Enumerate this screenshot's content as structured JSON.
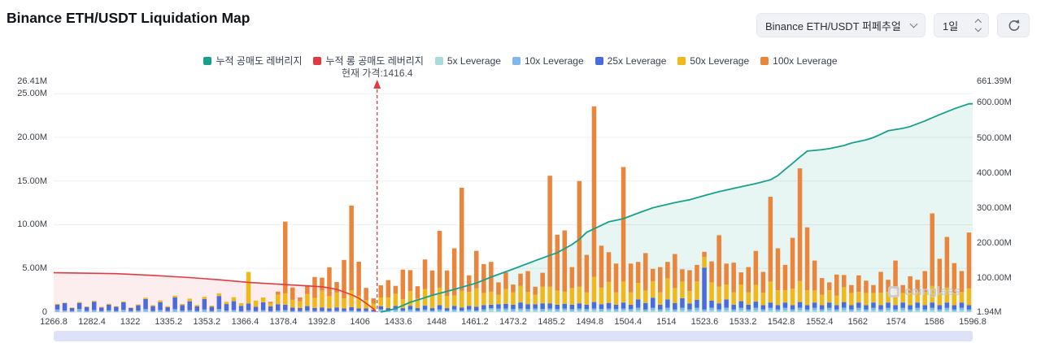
{
  "header": {
    "title": "Binance ETH/USDT Liquidation Map"
  },
  "controls": {
    "pair_select": {
      "value": "Binance ETH/USDT 퍼페추얼"
    },
    "interval_select": {
      "value": "1일"
    }
  },
  "legend": {
    "items": [
      {
        "label": "누적 공매도 레버리지",
        "color": "#17a08c"
      },
      {
        "label": "누적 롱 공매도 레버리지",
        "color": "#e23b3f"
      },
      {
        "label": "5x Leverage",
        "color": "#a7dcd8"
      },
      {
        "label": "10x Leverage",
        "color": "#7fb8ea"
      },
      {
        "label": "25x Leverage",
        "color": "#4a6bdc"
      },
      {
        "label": "50x Leverage",
        "color": "#f0b919"
      },
      {
        "label": "100x Leverage",
        "color": "#e9863c"
      }
    ]
  },
  "annotations": {
    "current_price_label": "현재 가격:1416.4",
    "current_price": 1416.4
  },
  "watermark": "coinglass",
  "chart_data": {
    "type": "bar",
    "subtype": "liquidation-map (stacked bars + cumulative lines)",
    "units": "M USD",
    "left_axis": {
      "max": 26.41,
      "ticks": [
        {
          "v": 26.41,
          "label": "26.41M",
          "grid": false
        },
        {
          "v": 25,
          "label": "25.00M",
          "grid": true
        },
        {
          "v": 20,
          "label": "20.00M",
          "grid": true
        },
        {
          "v": 15,
          "label": "15.00M",
          "grid": true
        },
        {
          "v": 10,
          "label": "10.00M",
          "grid": true
        },
        {
          "v": 5,
          "label": "5.00M",
          "grid": true
        },
        {
          "v": 0,
          "label": "0",
          "grid": false
        }
      ]
    },
    "right_axis": {
      "min": 1.94,
      "max": 661.39,
      "ticks": [
        {
          "v": 661.39,
          "label": "661.39M"
        },
        {
          "v": 600,
          "label": "600.00M"
        },
        {
          "v": 500,
          "label": "500.00M"
        },
        {
          "v": 400,
          "label": "400.00M"
        },
        {
          "v": 300,
          "label": "300.00M"
        },
        {
          "v": 200,
          "label": "200.00M"
        },
        {
          "v": 100,
          "label": "100.00M"
        },
        {
          "v": 1.94,
          "label": "1.94M"
        }
      ]
    },
    "x_tick_labels": [
      "1266.8",
      "1282.4",
      "1322",
      "1335.2",
      "1353.2",
      "1366.4",
      "1378.4",
      "1392.8",
      "1406",
      "1433.6",
      "1448",
      "1461.2",
      "1473.2",
      "1485.2",
      "1494.8",
      "1504.4",
      "1514",
      "1523.6",
      "1533.2",
      "1542.8",
      "1552.4",
      "1562",
      "1574",
      "1586",
      "1596.8"
    ],
    "current_price_index": 44,
    "bars": {
      "series_names": [
        "5x Leverage",
        "10x Leverage",
        "25x Leverage",
        "50x Leverage",
        "100x Leverage"
      ],
      "colors": [
        "#a7dcd8",
        "#7fb8ea",
        "#4a6bdc",
        "#f0b919",
        "#e9863c"
      ],
      "stacks": [
        [
          0.05,
          0.25,
          0.55,
          0.1,
          0
        ],
        [
          0.03,
          0.15,
          0.85,
          0.05,
          0
        ],
        [
          0.02,
          0.1,
          0.35,
          0.05,
          0
        ],
        [
          0.05,
          0.3,
          0.7,
          0.1,
          0
        ],
        [
          0.02,
          0.12,
          0.45,
          0.05,
          0
        ],
        [
          0.04,
          0.2,
          0.95,
          0.1,
          0
        ],
        [
          0.02,
          0.1,
          0.4,
          0.08,
          0
        ],
        [
          0.03,
          0.18,
          0.65,
          0.1,
          0
        ],
        [
          0.02,
          0.1,
          0.5,
          0.05,
          0
        ],
        [
          0.05,
          0.22,
          0.85,
          0.1,
          0
        ],
        [
          0.02,
          0.1,
          0.35,
          0.05,
          0
        ],
        [
          0.03,
          0.15,
          0.6,
          0.1,
          0
        ],
        [
          0.05,
          0.3,
          1.15,
          0.15,
          0
        ],
        [
          0.02,
          0.12,
          0.55,
          0.1,
          0
        ],
        [
          0.04,
          0.2,
          0.9,
          0.2,
          0
        ],
        [
          0.02,
          0.1,
          0.45,
          0.1,
          0
        ],
        [
          0.05,
          0.28,
          1.35,
          0.2,
          0
        ],
        [
          0.02,
          0.14,
          0.65,
          0.12,
          0
        ],
        [
          0.04,
          0.2,
          1.0,
          0.3,
          0
        ],
        [
          0.02,
          0.1,
          0.55,
          0.15,
          0
        ],
        [
          0.05,
          0.25,
          1.2,
          0.25,
          0
        ],
        [
          0.02,
          0.1,
          0.5,
          0.12,
          0
        ],
        [
          0.04,
          0.3,
          1.5,
          0.3,
          0
        ],
        [
          0.02,
          0.15,
          0.75,
          0.25,
          0
        ],
        [
          0.05,
          0.2,
          1.0,
          0.45,
          0
        ],
        [
          0.02,
          0.1,
          0.6,
          0.3,
          0
        ],
        [
          0.04,
          0.2,
          0.75,
          3.6,
          0
        ],
        [
          0.02,
          0.1,
          0.5,
          0.7,
          0
        ],
        [
          0.04,
          0.18,
          0.9,
          0.55,
          0
        ],
        [
          0.02,
          0.1,
          0.55,
          0.35,
          0.15
        ],
        [
          0.04,
          0.15,
          0.7,
          1.1,
          0.35
        ],
        [
          0.05,
          0.2,
          0.6,
          1.3,
          8.2
        ],
        [
          0.02,
          0.1,
          0.4,
          0.9,
          1.4
        ],
        [
          0.02,
          0.1,
          0.35,
          0.75,
          0.45
        ],
        [
          0.04,
          0.15,
          0.5,
          1.4,
          0.95
        ],
        [
          0.02,
          0.1,
          0.35,
          1.15,
          2.4
        ],
        [
          0.04,
          0.1,
          0.4,
          1.9,
          1.5
        ],
        [
          0.02,
          0.1,
          0.3,
          1.4,
          3.3
        ],
        [
          0.04,
          0.1,
          0.4,
          1.7,
          1.2
        ],
        [
          0.02,
          0.1,
          0.3,
          1.15,
          4.4
        ],
        [
          0.04,
          0.14,
          0.4,
          1.9,
          9.7
        ],
        [
          0.02,
          0.1,
          0.3,
          1.45,
          3.9
        ],
        [
          0.02,
          0.1,
          0.3,
          0.95,
          1.4
        ],
        [
          0.02,
          0.05,
          0.2,
          0.7,
          0.6
        ],
        [
          0.12,
          0.2,
          0.35,
          1.0,
          1.4
        ],
        [
          0.06,
          0.1,
          0.3,
          1.2,
          2.0
        ],
        [
          0.1,
          0.2,
          0.4,
          1.4,
          0.9
        ],
        [
          0.06,
          0.1,
          0.3,
          1.0,
          3.4
        ],
        [
          0.1,
          0.2,
          0.4,
          1.7,
          2.4
        ],
        [
          0.06,
          0.1,
          0.3,
          1.1,
          1.4
        ],
        [
          0.1,
          0.18,
          0.45,
          1.9,
          3.4
        ],
        [
          0.06,
          0.1,
          0.3,
          1.4,
          2.9
        ],
        [
          0.1,
          0.2,
          0.5,
          2.0,
          6.5
        ],
        [
          0.06,
          0.1,
          0.3,
          1.4,
          2.9
        ],
        [
          0.1,
          0.2,
          0.4,
          1.2,
          5.4
        ],
        [
          0.06,
          0.12,
          0.35,
          1.9,
          11.8
        ],
        [
          0.1,
          0.2,
          0.4,
          1.6,
          1.9
        ],
        [
          0.06,
          0.1,
          0.45,
          2.1,
          4.3
        ],
        [
          0.1,
          0.2,
          0.5,
          1.4,
          3.3
        ],
        [
          0.3,
          0.15,
          0.4,
          1.5,
          3.4
        ],
        [
          0.1,
          0.3,
          0.5,
          1.1,
          1.4
        ],
        [
          0.2,
          0.2,
          0.55,
          1.7,
          1.9
        ],
        [
          0.1,
          0.25,
          0.5,
          1.4,
          0.9
        ],
        [
          0.2,
          0.2,
          0.7,
          1.9,
          1.4
        ],
        [
          0.1,
          0.25,
          0.55,
          1.4,
          2.4
        ],
        [
          0.2,
          0.2,
          0.5,
          1.1,
          0.9
        ],
        [
          0.1,
          0.25,
          0.65,
          1.9,
          1.6
        ],
        [
          0.2,
          0.2,
          0.6,
          1.9,
          12.7
        ],
        [
          0.1,
          0.25,
          0.5,
          1.6,
          6.4
        ],
        [
          0.2,
          0.2,
          0.55,
          1.4,
          7.0
        ],
        [
          0.1,
          0.25,
          0.5,
          1.9,
          2.4
        ],
        [
          0.2,
          0.2,
          0.6,
          1.9,
          12.1
        ],
        [
          0.1,
          0.25,
          0.5,
          1.4,
          4.3
        ],
        [
          0.2,
          0.2,
          0.75,
          2.9,
          19.5
        ],
        [
          0.1,
          0.25,
          0.55,
          1.9,
          4.8
        ],
        [
          0.2,
          0.2,
          0.65,
          2.4,
          3.4
        ],
        [
          0.1,
          0.25,
          0.5,
          1.4,
          3.3
        ],
        [
          0.2,
          0.2,
          0.7,
          2.4,
          13.1
        ],
        [
          0.1,
          0.25,
          0.5,
          1.4,
          3.3
        ],
        [
          0.2,
          0.3,
          0.95,
          1.9,
          2.4
        ],
        [
          0.1,
          0.2,
          0.75,
          1.4,
          4.3
        ],
        [
          0.2,
          0.3,
          1.15,
          1.9,
          1.4
        ],
        [
          0.1,
          0.2,
          0.55,
          1.4,
          2.9
        ],
        [
          0.2,
          0.3,
          0.95,
          2.4,
          1.9
        ],
        [
          0.1,
          0.2,
          0.75,
          1.7,
          3.9
        ],
        [
          0.2,
          0.3,
          1.1,
          1.9,
          1.4
        ],
        [
          0.1,
          0.2,
          0.7,
          1.4,
          2.4
        ],
        [
          0.2,
          0.3,
          0.9,
          2.1,
          1.9
        ],
        [
          0.1,
          0.2,
          4.8,
          1.2,
          0.6
        ],
        [
          0.2,
          0.3,
          0.8,
          2.1,
          2.4
        ],
        [
          0.1,
          0.2,
          0.7,
          1.9,
          5.9
        ],
        [
          0.2,
          0.3,
          0.95,
          1.7,
          2.4
        ],
        [
          0.1,
          0.2,
          0.55,
          1.4,
          3.4
        ],
        [
          0.2,
          0.3,
          0.75,
          1.9,
          1.4
        ],
        [
          0.1,
          0.2,
          0.55,
          1.4,
          2.9
        ],
        [
          0.2,
          0.3,
          0.7,
          1.9,
          3.9
        ],
        [
          0.1,
          0.2,
          0.5,
          1.4,
          2.4
        ],
        [
          0.2,
          0.3,
          0.6,
          2.4,
          9.7
        ],
        [
          0.1,
          0.2,
          0.5,
          1.7,
          4.8
        ],
        [
          0.2,
          0.3,
          0.6,
          1.4,
          2.9
        ],
        [
          0.1,
          0.2,
          0.5,
          1.9,
          5.8
        ],
        [
          0.2,
          0.3,
          0.65,
          2.4,
          12.9
        ],
        [
          0.1,
          0.2,
          0.5,
          1.7,
          7.2
        ],
        [
          0.2,
          0.3,
          0.6,
          1.4,
          3.4
        ],
        [
          0.1,
          0.2,
          0.5,
          1.2,
          1.9
        ],
        [
          0.2,
          0.3,
          0.6,
          1.4,
          0.9
        ],
        [
          0.1,
          0.2,
          0.5,
          1.1,
          2.4
        ],
        [
          0.2,
          0.3,
          0.65,
          1.7,
          1.4
        ],
        [
          0.1,
          0.2,
          0.5,
          1.4,
          0.9
        ],
        [
          0.2,
          0.3,
          0.6,
          1.2,
          1.9
        ],
        [
          0.1,
          0.2,
          0.5,
          1.4,
          1.4
        ],
        [
          0.2,
          0.3,
          0.6,
          1.1,
          0.9
        ],
        [
          0.1,
          0.2,
          0.5,
          1.4,
          2.4
        ],
        [
          0.2,
          0.3,
          0.6,
          1.2,
          1.4
        ],
        [
          0.1,
          0.2,
          0.5,
          1.6,
          3.5
        ],
        [
          0.2,
          0.3,
          0.6,
          1.1,
          0.9
        ],
        [
          0.1,
          0.2,
          0.5,
          1.4,
          1.9
        ],
        [
          0.2,
          0.3,
          0.6,
          1.2,
          1.4
        ],
        [
          0.1,
          0.2,
          0.5,
          1.5,
          2.4
        ],
        [
          0.2,
          0.3,
          0.6,
          1.9,
          8.3
        ],
        [
          0.1,
          0.2,
          0.5,
          1.4,
          3.9
        ],
        [
          0.2,
          0.3,
          0.6,
          1.7,
          5.8
        ],
        [
          0.1,
          0.2,
          0.5,
          1.4,
          3.4
        ],
        [
          0.2,
          0.3,
          0.6,
          1.2,
          2.4
        ],
        [
          0.1,
          0.2,
          0.5,
          1.9,
          6.4
        ]
      ]
    },
    "cumulative_long": {
      "name": "누적 롱 공매도 레버리지",
      "axis": "left",
      "color": "#e23b3f",
      "fill": "rgba(226,59,63,0.09)",
      "points": [
        [
          0,
          4.5
        ],
        [
          8,
          4.4
        ],
        [
          13,
          4.2
        ],
        [
          18,
          3.95
        ],
        [
          22,
          3.7
        ],
        [
          26,
          3.4
        ],
        [
          30,
          3.2
        ],
        [
          33,
          3.05
        ],
        [
          36,
          2.9
        ],
        [
          38,
          2.6
        ],
        [
          39,
          2.3
        ],
        [
          40,
          2.0
        ],
        [
          41,
          1.6
        ],
        [
          42,
          1.0
        ],
        [
          43,
          0.4
        ],
        [
          43.3,
          0.05
        ]
      ]
    },
    "cumulative_short": {
      "name": "누적 공매도 레버리지",
      "axis": "right",
      "color": "#17a08c",
      "fill": "rgba(23,160,140,0.10)",
      "points": [
        [
          44,
          2
        ],
        [
          46,
          12
        ],
        [
          48,
          30
        ],
        [
          51,
          50
        ],
        [
          54,
          67
        ],
        [
          57,
          85
        ],
        [
          59,
          102
        ],
        [
          62,
          125
        ],
        [
          65,
          149
        ],
        [
          68,
          172
        ],
        [
          70,
          195
        ],
        [
          71,
          210
        ],
        [
          72,
          230
        ],
        [
          74,
          250
        ],
        [
          75,
          260
        ],
        [
          77,
          269
        ],
        [
          79,
          285
        ],
        [
          81,
          300
        ],
        [
          84,
          315
        ],
        [
          86,
          323
        ],
        [
          88,
          335
        ],
        [
          90,
          346
        ],
        [
          93,
          360
        ],
        [
          95,
          369
        ],
        [
          97,
          380
        ],
        [
          98,
          392
        ],
        [
          99,
          410
        ],
        [
          100,
          427
        ],
        [
          101,
          445
        ],
        [
          102,
          462
        ],
        [
          104,
          466
        ],
        [
          105,
          469
        ],
        [
          107,
          478
        ],
        [
          108,
          485
        ],
        [
          110,
          494
        ],
        [
          111,
          501
        ],
        [
          112,
          510
        ],
        [
          113,
          520
        ],
        [
          115,
          527
        ],
        [
          116,
          532
        ],
        [
          118,
          548
        ],
        [
          120,
          566
        ],
        [
          122,
          583
        ],
        [
          124,
          597
        ]
      ]
    }
  }
}
